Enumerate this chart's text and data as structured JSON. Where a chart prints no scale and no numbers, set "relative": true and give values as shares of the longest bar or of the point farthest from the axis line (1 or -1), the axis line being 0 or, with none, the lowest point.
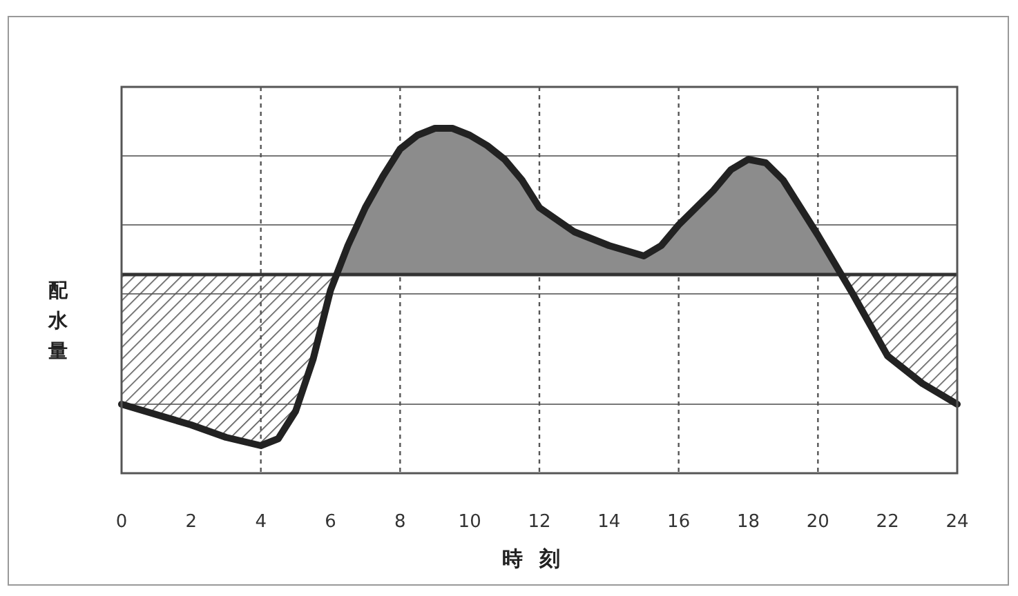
{
  "chart_data": {
    "type": "line",
    "relative": true,
    "xlabel": "時刻",
    "ylabel": "配水量",
    "x": [
      0,
      1,
      2,
      3,
      4,
      4.5,
      5,
      5.5,
      6,
      6.5,
      7,
      7.5,
      8,
      8.5,
      9,
      9.5,
      10,
      10.5,
      11,
      11.5,
      12,
      13,
      14,
      15,
      15.5,
      16,
      17,
      17.5,
      18,
      18.5,
      19,
      19.5,
      20,
      21,
      22,
      23,
      24
    ],
    "series": [
      {
        "color": "#222222",
        "values": [
          0.2,
          0.17,
          0.14,
          0.104,
          0.08,
          0.1,
          0.18,
          0.33,
          0.53,
          0.66,
          0.77,
          0.86,
          0.94,
          0.98,
          1.0,
          1.0,
          0.98,
          0.95,
          0.91,
          0.85,
          0.77,
          0.7,
          0.66,
          0.63,
          0.66,
          0.72,
          0.82,
          0.88,
          0.91,
          0.9,
          0.85,
          0.77,
          0.69,
          0.52,
          0.34,
          0.26,
          0.2
        ],
        "upper": [
          0.2,
          0.17,
          0.14,
          0.104,
          0.08,
          0.1,
          0.18,
          0.33,
          0.53,
          0.66,
          0.77,
          0.86,
          0.94,
          0.98,
          1.0,
          1.0,
          0.98,
          0.95,
          0.91,
          0.85,
          0.77,
          0.7,
          0.66,
          0.63,
          0.66,
          0.72,
          0.82,
          0.88,
          0.91,
          0.9,
          0.85,
          0.77,
          0.69,
          0.52,
          0.34,
          0.26,
          0.2
        ],
        "lower": [
          0.576,
          0.576,
          0.576,
          0.576,
          0.576,
          0.576,
          0.576,
          0.576,
          0.576,
          0.576,
          0.576,
          0.576,
          0.576,
          0.576,
          0.576,
          0.576,
          0.576,
          0.576,
          0.576,
          0.576,
          0.576,
          0.576,
          0.576,
          0.576,
          0.576,
          0.576,
          0.576,
          0.576,
          0.576,
          0.576,
          0.576,
          0.576,
          0.576,
          0.576,
          0.576,
          0.576,
          0.576
        ]
      }
    ],
    "xlim": [
      0,
      24
    ],
    "xticks": [
      0,
      2,
      4,
      6,
      8,
      10,
      12,
      14,
      16,
      18,
      20,
      22,
      24
    ],
    "ref_lines": [
      {
        "axis": "y",
        "value": 0.576,
        "color": "#333333"
      }
    ],
    "grid": true,
    "marker": "none",
    "line_style": "solid"
  }
}
